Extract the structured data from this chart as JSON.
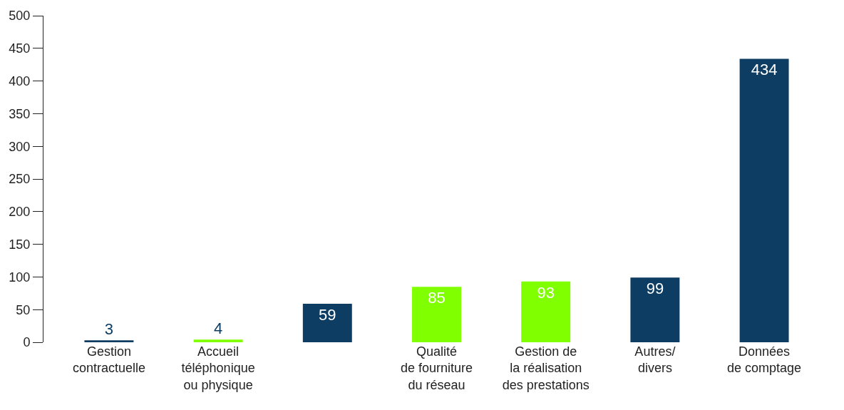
{
  "chart_data": {
    "type": "bar",
    "categories": [
      "Gestion\ncontractuelle",
      "Accueil\ntéléphonique\nou physique",
      null,
      "Qualité\nde fourniture\ndu réseau",
      "Gestion de\nla réalisation\ndes prestations",
      "Autres/\ndivers",
      "Données\nde comptage"
    ],
    "values": [
      3,
      4,
      59,
      85,
      93,
      99,
      434
    ],
    "colors": [
      "#0d3d63",
      "#80ff00",
      "#0d3d63",
      "#80ff00",
      "#80ff00",
      "#0d3d63",
      "#0d3d63"
    ],
    "ylim": [
      0,
      500
    ],
    "yticks": [
      0,
      50,
      100,
      150,
      200,
      250,
      300,
      350,
      400,
      450,
      500
    ],
    "data_labels": true
  }
}
